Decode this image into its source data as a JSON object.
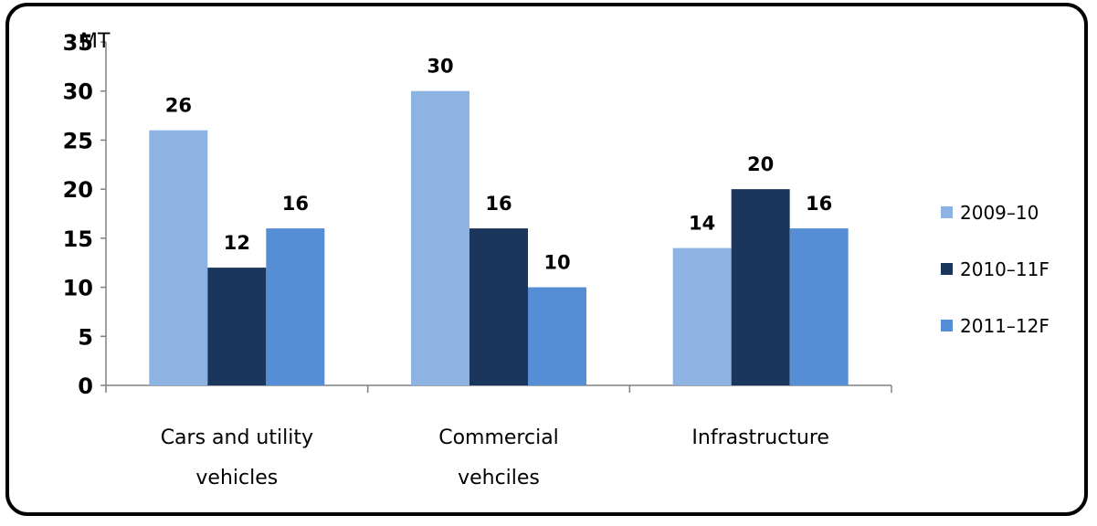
{
  "chart_data": {
    "type": "bar",
    "unit_label": "MT",
    "categories": [
      [
        "Cars and utility",
        "vehicles"
      ],
      [
        "Commercial",
        "vehciles"
      ],
      [
        "Infrastructure"
      ]
    ],
    "series": [
      {
        "name": "2009–10",
        "color": "#8db3e2",
        "values": [
          26,
          30,
          14
        ]
      },
      {
        "name": "2010–11F",
        "color": "#1b365d",
        "values": [
          12,
          16,
          20
        ]
      },
      {
        "name": "2011–12F",
        "color": "#558ed5",
        "values": [
          16,
          10,
          16
        ]
      }
    ],
    "ylim": [
      0,
      35
    ],
    "yticks": [
      0,
      5,
      10,
      15,
      20,
      25,
      30,
      35
    ],
    "grid": false,
    "legend_position": "right"
  }
}
